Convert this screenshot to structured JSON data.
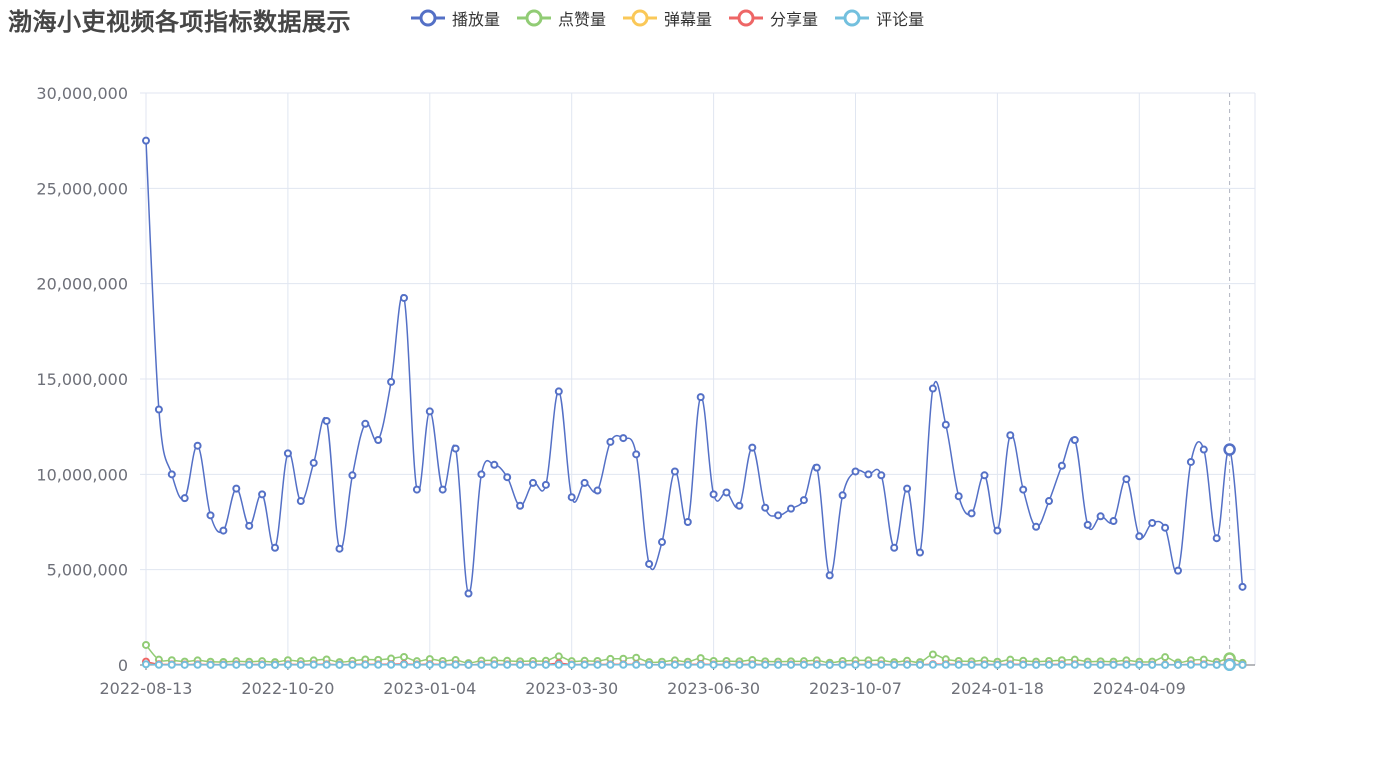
{
  "chart_data": {
    "type": "line",
    "title": "渤海小吏视频各项指标数据展示",
    "x_tick_labels": [
      "2022-08-13",
      "2022-10-20",
      "2023-01-04",
      "2023-03-30",
      "2023-06-30",
      "2023-10-07",
      "2024-01-18",
      "2024-04-09"
    ],
    "x_tick_positions": [
      0,
      11,
      22,
      33,
      44,
      55,
      66,
      77
    ],
    "ylim": [
      0,
      30000000
    ],
    "y_ticks": [
      "0",
      "5,000,000",
      "10,000,000",
      "15,000,000",
      "20,000,000",
      "25,000,000",
      "30,000,000"
    ],
    "y_tick_values": [
      0,
      5000000,
      10000000,
      15000000,
      20000000,
      25000000,
      30000000
    ],
    "grid": true,
    "legend_position": "top",
    "smooth": true,
    "series": [
      {
        "name": "播放量",
        "color": "#5470c6",
        "values": [
          27500000,
          13400000,
          10000000,
          8750000,
          11500000,
          7850000,
          7050000,
          9250000,
          7300000,
          8950000,
          6150000,
          11100000,
          8600000,
          10600000,
          12800000,
          6100000,
          9950000,
          12650000,
          11800000,
          14850000,
          19250000,
          9200000,
          13300000,
          9200000,
          11350000,
          3750000,
          10000000,
          10500000,
          9850000,
          8350000,
          9550000,
          9450000,
          14350000,
          8800000,
          9550000,
          9150000,
          11700000,
          11900000,
          11050000,
          5300000,
          6450000,
          10150000,
          7500000,
          14050000,
          8950000,
          9050000,
          8350000,
          11400000,
          8250000,
          7850000,
          8200000,
          8650000,
          10350000,
          4700000,
          8900000,
          10150000,
          10000000,
          9950000,
          6150000,
          9250000,
          5900000,
          14500000,
          12600000,
          8850000,
          7950000,
          9950000,
          7050000,
          12050000,
          9200000,
          7250000,
          8600000,
          10450000,
          11800000,
          7350000,
          7800000,
          7550000,
          9750000,
          6750000,
          7450000,
          7200000,
          4950000,
          10650000,
          11300000,
          6650000,
          11300000,
          4100000
        ]
      },
      {
        "name": "点赞量",
        "color": "#91cc75",
        "values": [
          1050000,
          280000,
          250000,
          180000,
          240000,
          170000,
          160000,
          200000,
          170000,
          200000,
          150000,
          250000,
          200000,
          240000,
          290000,
          150000,
          220000,
          290000,
          270000,
          340000,
          420000,
          200000,
          310000,
          210000,
          260000,
          100000,
          230000,
          240000,
          220000,
          190000,
          210000,
          220000,
          450000,
          200000,
          220000,
          210000,
          320000,
          330000,
          380000,
          150000,
          170000,
          240000,
          170000,
          360000,
          210000,
          210000,
          190000,
          260000,
          190000,
          180000,
          190000,
          200000,
          240000,
          120000,
          210000,
          240000,
          240000,
          240000,
          150000,
          220000,
          150000,
          550000,
          300000,
          210000,
          190000,
          240000,
          170000,
          280000,
          220000,
          180000,
          210000,
          250000,
          280000,
          180000,
          190000,
          180000,
          240000,
          170000,
          180000,
          410000,
          130000,
          250000,
          280000,
          170000,
          340000,
          110000
        ]
      },
      {
        "name": "弹幕量",
        "color": "#fac858",
        "values": [
          100000,
          30000,
          25000,
          20000,
          25000,
          18000,
          17000,
          22000,
          18000,
          21000,
          15000,
          27000,
          20000,
          25000,
          30000,
          15000,
          23000,
          30000,
          28000,
          35000,
          45000,
          20000,
          32000,
          22000,
          27000,
          10000,
          24000,
          25000,
          23000,
          19000,
          22000,
          22000,
          40000,
          20000,
          22000,
          21000,
          28000,
          29000,
          27000,
          13000,
          16000,
          24000,
          18000,
          34000,
          21000,
          22000,
          20000,
          27000,
          20000,
          19000,
          20000,
          21000,
          25000,
          11000,
          21000,
          24000,
          24000,
          24000,
          15000,
          22000,
          14000,
          35000,
          30000,
          21000,
          19000,
          24000,
          17000,
          29000,
          22000,
          17000,
          21000,
          25000,
          28000,
          18000,
          19000,
          18000,
          23000,
          16000,
          18000,
          17000,
          12000,
          25000,
          27000,
          16000,
          27000,
          10000
        ]
      },
      {
        "name": "分享量",
        "color": "#ee6666",
        "values": [
          180000,
          40000,
          30000,
          25000,
          32000,
          22000,
          20000,
          26000,
          21000,
          25000,
          17000,
          31000,
          24000,
          30000,
          36000,
          17000,
          28000,
          36000,
          33000,
          42000,
          55000,
          26000,
          38000,
          26000,
          32000,
          11000,
          28000,
          30000,
          28000,
          24000,
          27000,
          27000,
          95000,
          25000,
          27000,
          26000,
          33000,
          34000,
          32000,
          15000,
          18000,
          29000,
          21000,
          40000,
          25000,
          26000,
          24000,
          32000,
          24000,
          22000,
          23000,
          25000,
          30000,
          13000,
          25000,
          29000,
          28000,
          28000,
          17000,
          26000,
          17000,
          42000,
          36000,
          25000,
          23000,
          28000,
          20000,
          34000,
          26000,
          21000,
          24000,
          30000,
          34000,
          21000,
          22000,
          21000,
          28000,
          19000,
          21000,
          20000,
          14000,
          30000,
          32000,
          19000,
          32000,
          12000
        ]
      },
      {
        "name": "评论量",
        "color": "#73c0de",
        "values": [
          40000,
          12000,
          10000,
          8000,
          10000,
          7000,
          7000,
          9000,
          7000,
          8000,
          6000,
          10000,
          8000,
          10000,
          11000,
          6000,
          9000,
          11000,
          11000,
          13000,
          17000,
          8000,
          12000,
          8000,
          10000,
          4000,
          9000,
          10000,
          9000,
          8000,
          9000,
          9000,
          13000,
          8000,
          9000,
          8000,
          10000,
          11000,
          10000,
          5000,
          6000,
          9000,
          7000,
          12000,
          8000,
          8000,
          8000,
          10000,
          8000,
          7000,
          8000,
          8000,
          9000,
          5000,
          8000,
          9000,
          9000,
          9000,
          6000,
          8000,
          6000,
          13000,
          11000,
          8000,
          7000,
          9000,
          7000,
          11000,
          8000,
          7000,
          8000,
          9000,
          11000,
          7000,
          7000,
          7000,
          9000,
          6000,
          7000,
          7000,
          5000,
          10000,
          10000,
          6000,
          10000,
          4000
        ]
      }
    ],
    "highlight_index": 84
  }
}
